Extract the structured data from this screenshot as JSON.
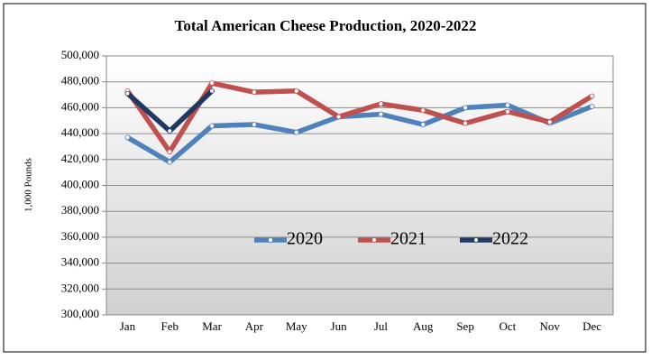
{
  "chart_data": {
    "type": "line",
    "title": "Total American Cheese Production, 2020-2022",
    "y_label": "1,000 Pounds",
    "categories": [
      "Jan",
      "Feb",
      "Mar",
      "Apr",
      "May",
      "Jun",
      "Jul",
      "Aug",
      "Sep",
      "Oct",
      "Nov",
      "Dec"
    ],
    "series": [
      {
        "name": "2020",
        "color": "#4f81bd",
        "values": [
          437000,
          418000,
          446000,
          447000,
          441000,
          453000,
          455000,
          447000,
          460000,
          462000,
          448000,
          461000
        ]
      },
      {
        "name": "2021",
        "color": "#c0504d",
        "values": [
          473000,
          426000,
          479000,
          472000,
          473000,
          453000,
          463000,
          458000,
          448000,
          457000,
          449000,
          469000
        ]
      },
      {
        "name": "2022",
        "color": "#1f3864",
        "values": [
          471000,
          442000,
          473000,
          null,
          null,
          null,
          null,
          null,
          null,
          null,
          null,
          null
        ]
      }
    ],
    "ylim": [
      300000,
      500000
    ],
    "yticks": [
      {
        "value": 300000,
        "label": "300,000"
      },
      {
        "value": 320000,
        "label": "320,000"
      },
      {
        "value": 340000,
        "label": "340,000"
      },
      {
        "value": 360000,
        "label": "360,000"
      },
      {
        "value": 380000,
        "label": "380,000"
      },
      {
        "value": 400000,
        "label": "400,000"
      },
      {
        "value": 420000,
        "label": "420,000"
      },
      {
        "value": 440000,
        "label": "440,000"
      },
      {
        "value": 460000,
        "label": "460,000"
      },
      {
        "value": 480000,
        "label": "480,000"
      },
      {
        "value": 500000,
        "label": "500,000"
      }
    ],
    "grid": true
  }
}
